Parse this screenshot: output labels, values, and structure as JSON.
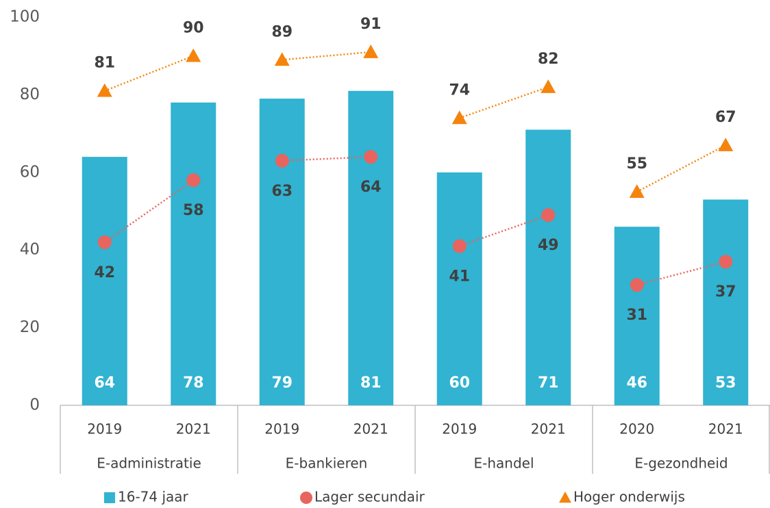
{
  "chart_data": {
    "type": "bar-line",
    "categories": [
      "2019",
      "2021",
      "2019",
      "2021",
      "2019",
      "2021",
      "2020",
      "2021"
    ],
    "groups": [
      "E-administratie",
      "E-bankieren",
      "E-handel",
      "E-gezondheid"
    ],
    "series": [
      {
        "name": "16-74 jaar",
        "type": "bar",
        "color": "#31b3d1",
        "values": [
          64,
          78,
          79,
          81,
          60,
          71,
          46,
          53
        ]
      },
      {
        "name": "Lager secundair",
        "type": "line",
        "marker": "circle",
        "color": "#e8645e",
        "values": [
          42,
          58,
          63,
          64,
          41,
          49,
          31,
          37
        ]
      },
      {
        "name": "Hoger onderwijs",
        "type": "line",
        "marker": "triangle",
        "color": "#f5840c",
        "values": [
          81,
          90,
          89,
          91,
          74,
          82,
          55,
          67
        ]
      }
    ],
    "ylim": [
      0,
      100
    ],
    "yticks": [
      0,
      20,
      40,
      60,
      80,
      100
    ],
    "legend": "bottom"
  }
}
